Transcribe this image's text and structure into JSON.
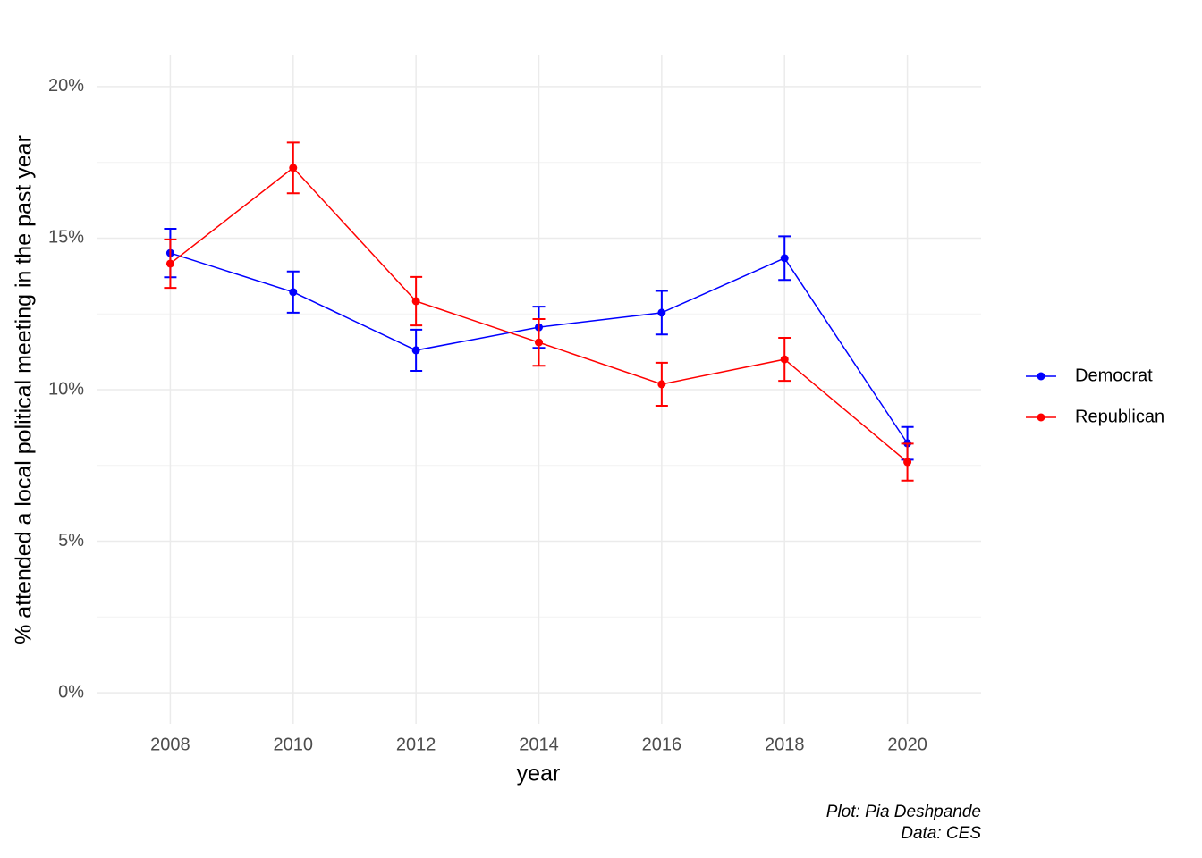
{
  "chart_data": {
    "type": "line",
    "x_label": "year",
    "y_label": "% attended a local political meeting in the past year",
    "caption": [
      "Plot: Pia Deshpande",
      "Data: CES"
    ],
    "x": [
      2008,
      2010,
      2012,
      2014,
      2016,
      2018,
      2020
    ],
    "series": [
      {
        "name": "Democrat",
        "color": "#0000ff",
        "values": [
          14.51,
          13.22,
          11.3,
          12.06,
          12.54,
          14.34,
          8.23
        ],
        "errors": [
          0.8,
          0.68,
          0.68,
          0.68,
          0.72,
          0.72,
          0.54
        ]
      },
      {
        "name": "Republican",
        "color": "#ff0000",
        "values": [
          14.16,
          17.32,
          12.92,
          11.56,
          10.18,
          11.0,
          7.61
        ],
        "errors": [
          0.8,
          0.84,
          0.8,
          0.77,
          0.71,
          0.71,
          0.61
        ]
      }
    ],
    "xlim": [
      2006.8,
      2021.2
    ],
    "xticks": [
      2008,
      2010,
      2012,
      2014,
      2016,
      2018,
      2020
    ],
    "ylim": [
      -1.03,
      21.03
    ],
    "yticks": [
      {
        "value": 0,
        "label": "0%"
      },
      {
        "value": 5,
        "label": "5%"
      },
      {
        "value": 10,
        "label": "10%"
      },
      {
        "value": 15,
        "label": "15%"
      },
      {
        "value": 20,
        "label": "20%"
      }
    ],
    "y_minor_ticks": [
      2.5,
      7.5,
      12.5,
      17.5
    ],
    "grid": true,
    "legend": "right"
  }
}
